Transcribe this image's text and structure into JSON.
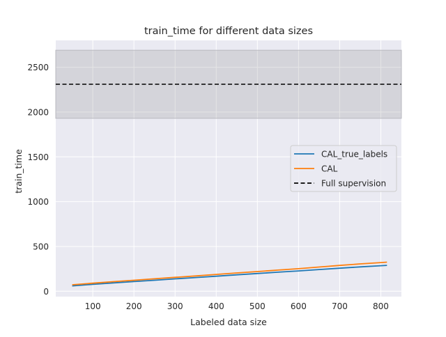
{
  "chart_data": {
    "type": "line",
    "title": "train_time for different data sizes",
    "xlabel": "Labeled data size",
    "ylabel": "train_time",
    "xlim": [
      10,
      850
    ],
    "ylim": [
      -60,
      2800
    ],
    "xticks": [
      100,
      200,
      300,
      400,
      500,
      600,
      700,
      800
    ],
    "yticks": [
      0,
      500,
      1000,
      1500,
      2000,
      2500
    ],
    "grid": true,
    "legend_position": "center-right",
    "background": "#eaeaf2",
    "series": [
      {
        "name": "CAL_true_labels",
        "color": "#1f77b4",
        "style": "solid",
        "x": [
          50,
          100,
          150,
          200,
          250,
          300,
          350,
          400,
          450,
          500,
          550,
          600,
          650,
          700,
          750,
          800,
          815
        ],
        "y": [
          60,
          77,
          93,
          108,
          123,
          138,
          153,
          168,
          183,
          198,
          213,
          227,
          242,
          257,
          272,
          285,
          289
        ]
      },
      {
        "name": "CAL",
        "color": "#ff7f0e",
        "style": "solid",
        "x": [
          50,
          100,
          150,
          200,
          250,
          300,
          350,
          400,
          450,
          500,
          550,
          600,
          650,
          700,
          750,
          800,
          815
        ],
        "y": [
          72,
          90,
          107,
          123,
          139,
          155,
          171,
          188,
          204,
          220,
          236,
          252,
          270,
          288,
          305,
          320,
          325
        ]
      }
    ],
    "reference": {
      "name": "Full supervision",
      "color": "#000000",
      "style": "dashed",
      "y": 2310,
      "band": [
        1930,
        2690
      ]
    }
  }
}
